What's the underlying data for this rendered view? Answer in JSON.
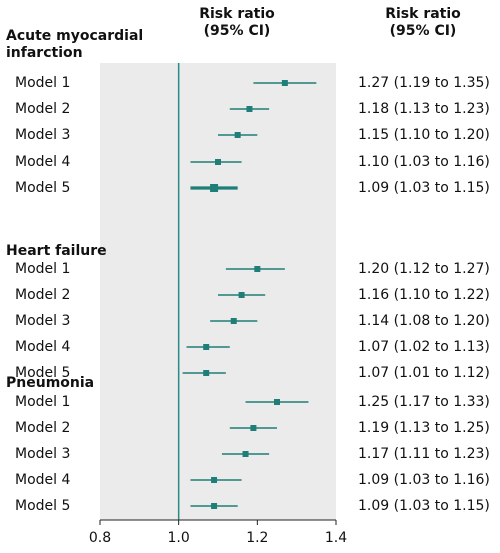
{
  "header": {
    "plot_col": [
      "Risk ratio",
      "(95% CI)"
    ],
    "ci_col": [
      "Risk ratio",
      "(95% CI)"
    ]
  },
  "colors": {
    "marker": "#1f7e78",
    "ref_line": "#2a8a88",
    "panel": "#ebebeb"
  },
  "chart_data": {
    "type": "forest",
    "xlim": [
      0.8,
      1.4
    ],
    "x_ticks": [
      "0.8",
      "1.0",
      "1.2",
      "1.4"
    ],
    "reference_x": 1.0,
    "groups": [
      {
        "label_lines": [
          "Acute myocardial",
          "infarction"
        ],
        "rows": [
          {
            "label": "Model 1",
            "rr": 1.27,
            "lo": 1.19,
            "hi": 1.35,
            "text": "1.27 (1.19 to 1.35)"
          },
          {
            "label": "Model 2",
            "rr": 1.18,
            "lo": 1.13,
            "hi": 1.23,
            "text": "1.18 (1.13 to 1.23)"
          },
          {
            "label": "Model 3",
            "rr": 1.15,
            "lo": 1.1,
            "hi": 1.2,
            "text": "1.15 (1.10 to 1.20)"
          },
          {
            "label": "Model 4",
            "rr": 1.1,
            "lo": 1.03,
            "hi": 1.16,
            "text": "1.10 (1.03 to 1.16)"
          },
          {
            "label": "Model 5",
            "rr": 1.09,
            "lo": 1.03,
            "hi": 1.15,
            "text": "1.09 (1.03 to 1.15)"
          }
        ]
      },
      {
        "label_lines": [
          "Heart failure"
        ],
        "rows": [
          {
            "label": "Model 1",
            "rr": 1.2,
            "lo": 1.12,
            "hi": 1.27,
            "text": "1.20 (1.12 to 1.27)"
          },
          {
            "label": "Model 2",
            "rr": 1.16,
            "lo": 1.1,
            "hi": 1.22,
            "text": "1.16 (1.10 to 1.22)"
          },
          {
            "label": "Model 3",
            "rr": 1.14,
            "lo": 1.08,
            "hi": 1.2,
            "text": "1.14 (1.08 to 1.20)"
          },
          {
            "label": "Model 4",
            "rr": 1.07,
            "lo": 1.02,
            "hi": 1.13,
            "text": "1.07 (1.02 to 1.13)"
          },
          {
            "label": "Model 5",
            "rr": 1.07,
            "lo": 1.01,
            "hi": 1.12,
            "text": "1.07 (1.01 to 1.12)"
          }
        ]
      },
      {
        "label_lines": [
          "Pneumonia"
        ],
        "rows": [
          {
            "label": "Model 1",
            "rr": 1.25,
            "lo": 1.17,
            "hi": 1.33,
            "text": "1.25 (1.17 to 1.33)"
          },
          {
            "label": "Model 2",
            "rr": 1.19,
            "lo": 1.13,
            "hi": 1.25,
            "text": "1.19 (1.13 to 1.25)"
          },
          {
            "label": "Model 3",
            "rr": 1.17,
            "lo": 1.11,
            "hi": 1.23,
            "text": "1.17 (1.11 to 1.23)"
          },
          {
            "label": "Model 4",
            "rr": 1.09,
            "lo": 1.03,
            "hi": 1.16,
            "text": "1.09 (1.03 to 1.16)"
          },
          {
            "label": "Model 5",
            "rr": 1.09,
            "lo": 1.03,
            "hi": 1.15,
            "text": "1.09 (1.03 to 1.15)"
          }
        ]
      }
    ]
  }
}
